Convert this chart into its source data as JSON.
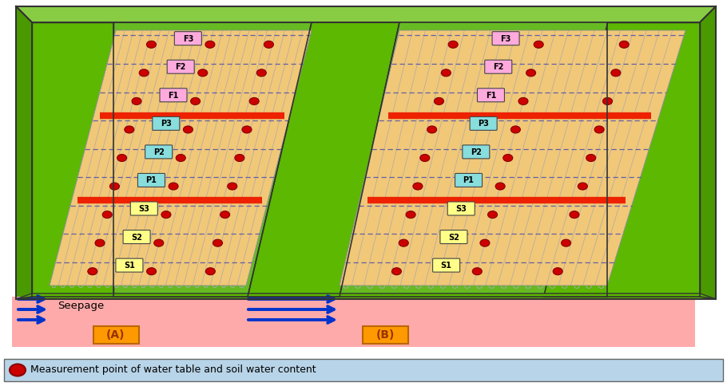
{
  "bg_color": "#ffffff",
  "legend_bg": "#b8d4e8",
  "legend_text": "Measurement point of water table and soil water content",
  "seepage_text": "Seepage",
  "outer_green_light": "#7dc832",
  "outer_green_mid": "#5aaa10",
  "outer_green_dark": "#3d8800",
  "field_bg": "#f0c878",
  "field_line_color": "#9999bb",
  "dashed_line_color": "#5555aa",
  "red_bar_color": "#ee2200",
  "meas_color": "#cc0000",
  "meas_edge": "#880000",
  "seepage_fill": "#ffaaaa",
  "seepage_green": "#66cc00",
  "arrow_color": "#0033cc",
  "label_A_bg": "#ff9900",
  "label_B_bg": "#ff9900",
  "plot_A": {
    "rows": [
      {
        "label": "F3",
        "color": "#ffaadd"
      },
      {
        "label": "F2",
        "color": "#ffaadd"
      },
      {
        "label": "F1",
        "color": "#ffaadd"
      },
      {
        "label": "P3",
        "color": "#88dddd"
      },
      {
        "label": "P2",
        "color": "#88dddd"
      },
      {
        "label": "P1",
        "color": "#88dddd"
      },
      {
        "label": "S3",
        "color": "#ffff88"
      },
      {
        "label": "S2",
        "color": "#ffff88"
      },
      {
        "label": "S1",
        "color": "#ffff88"
      }
    ],
    "red_bar_after_rows": [
      2,
      5
    ]
  },
  "plot_B": {
    "rows": [
      {
        "label": "F3",
        "color": "#ffaadd"
      },
      {
        "label": "F2",
        "color": "#ffaadd"
      },
      {
        "label": "F1",
        "color": "#ffaadd"
      },
      {
        "label": "P3",
        "color": "#88dddd"
      },
      {
        "label": "P2",
        "color": "#88dddd"
      },
      {
        "label": "P1",
        "color": "#88dddd"
      },
      {
        "label": "S3",
        "color": "#ffff88"
      },
      {
        "label": "S2",
        "color": "#ffff88"
      },
      {
        "label": "S1",
        "color": "#ffff88"
      }
    ],
    "red_bar_after_rows": [
      2,
      5
    ]
  }
}
